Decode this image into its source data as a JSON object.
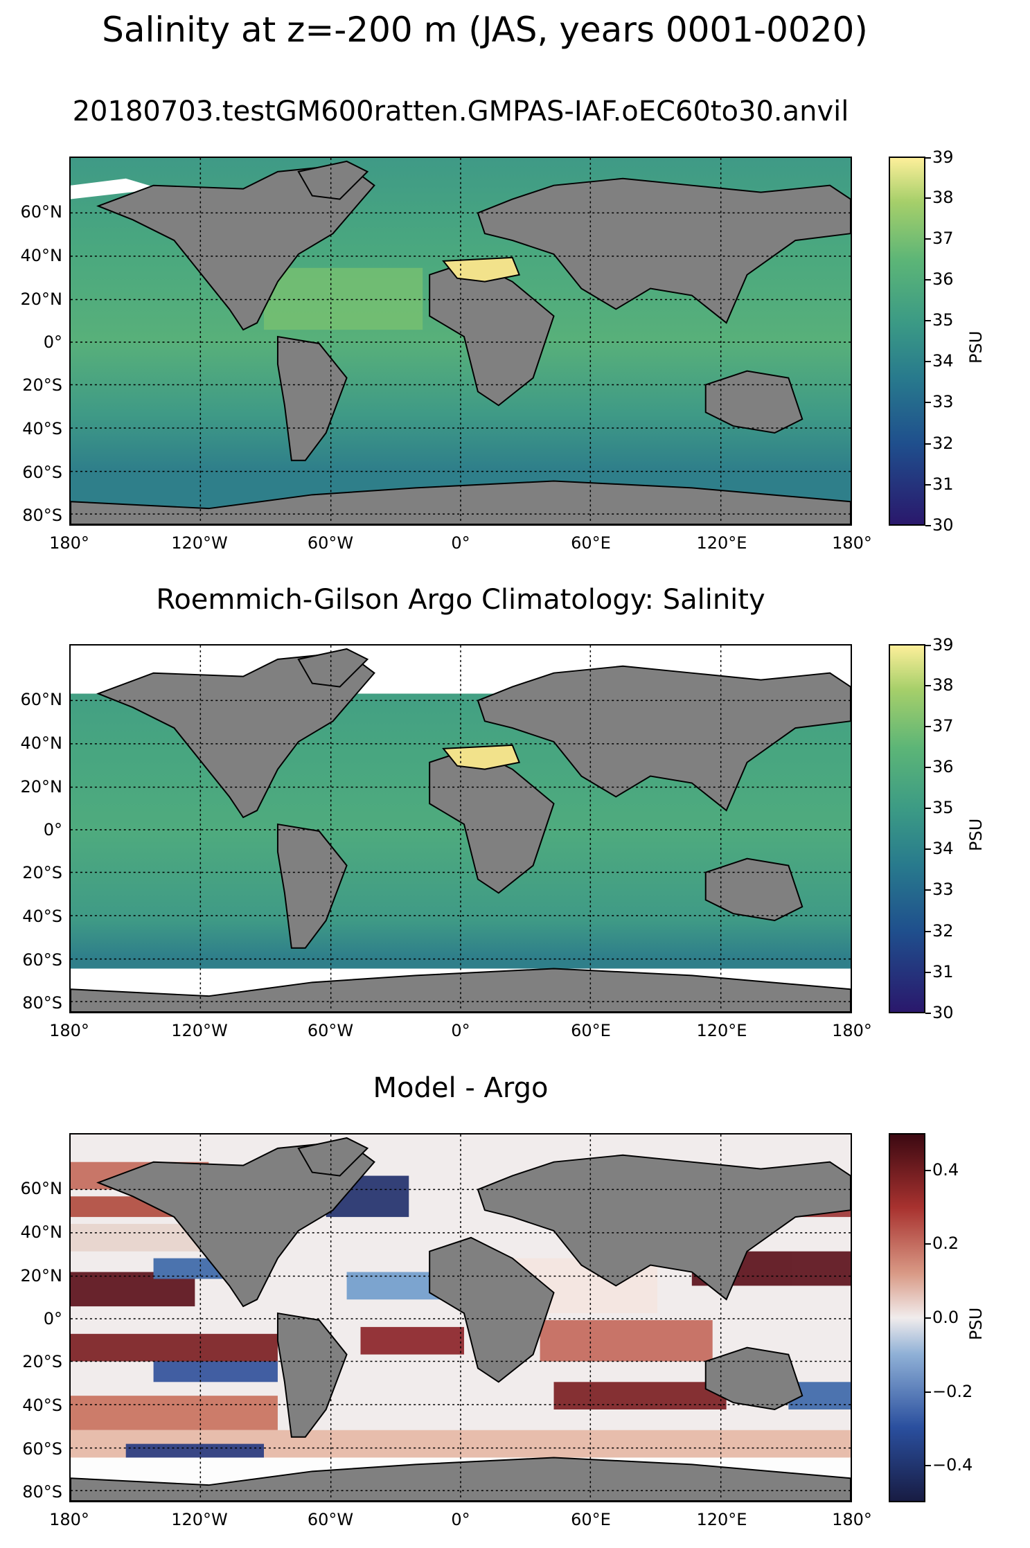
{
  "title": "Salinity at z=-200 m (JAS, years 0001-0020)",
  "panels": [
    {
      "title": "20180703.testGM600ratten.GMPAS-IAF.oEC60to30.anvil",
      "colormap": "haline",
      "colorbar": {
        "label": "PSU",
        "ticks": [
          "30",
          "31",
          "32",
          "33",
          "34",
          "35",
          "36",
          "37",
          "38",
          "39"
        ],
        "range": [
          30,
          39
        ]
      }
    },
    {
      "title": "Roemmich-Gilson Argo Climatology: Salinity",
      "colormap": "haline",
      "colorbar": {
        "label": "PSU",
        "ticks": [
          "30",
          "31",
          "32",
          "33",
          "34",
          "35",
          "36",
          "37",
          "38",
          "39"
        ],
        "range": [
          30,
          39
        ]
      }
    },
    {
      "title": "Model - Argo",
      "colormap": "balance",
      "colorbar": {
        "label": "PSU",
        "ticks": [
          "−0.4",
          "−0.2",
          "0.0",
          "0.2",
          "0.4"
        ],
        "range": [
          -0.5,
          0.5
        ]
      }
    }
  ],
  "axes": {
    "lat_labels": [
      "60°N",
      "40°N",
      "20°N",
      "0°",
      "20°S",
      "40°S",
      "60°S",
      "80°S"
    ],
    "lon_labels": [
      "180°",
      "120°W",
      "60°W",
      "0°",
      "60°E",
      "120°E",
      "180°"
    ]
  },
  "colors": {
    "land": "#808080",
    "haline_low": "#2a186c",
    "haline_high": "#fdef9a",
    "balance_low": "#181c43",
    "balance_mid": "#f1ecec",
    "balance_high": "#3c0912"
  }
}
